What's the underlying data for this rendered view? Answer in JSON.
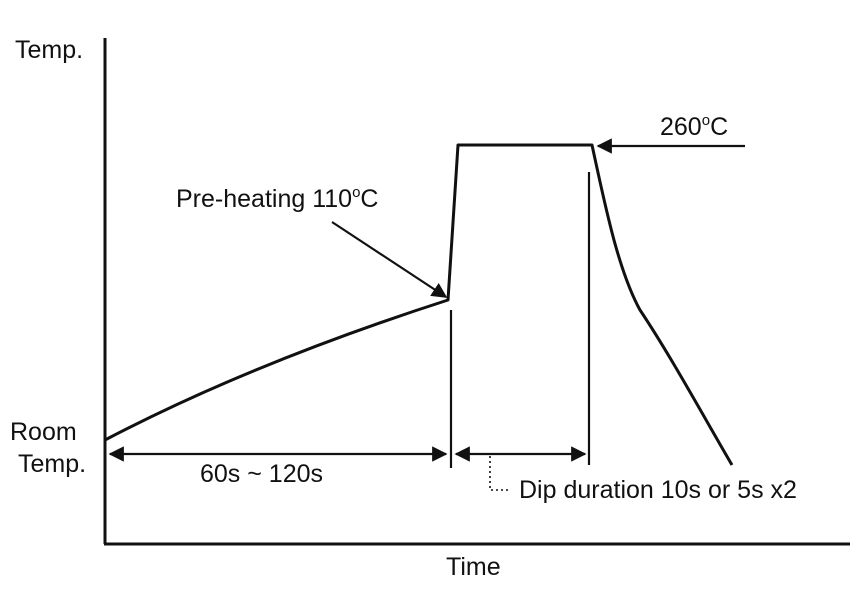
{
  "axes": {
    "y_label": "Temp.",
    "x_label": "Time",
    "room_temp_line1": "Room",
    "room_temp_line2": "Temp."
  },
  "annotations": {
    "preheat_prefix": "Pre-heating 110",
    "preheat_sup": "o",
    "preheat_suffix": "C",
    "peak_prefix": "260",
    "peak_sup": "o",
    "peak_suffix": "C",
    "preheat_duration": "60s ~ 120s",
    "dip_duration": "Dip duration 10s or 5s x2"
  },
  "colors": {
    "line": "#111111",
    "background": "#ffffff"
  }
}
